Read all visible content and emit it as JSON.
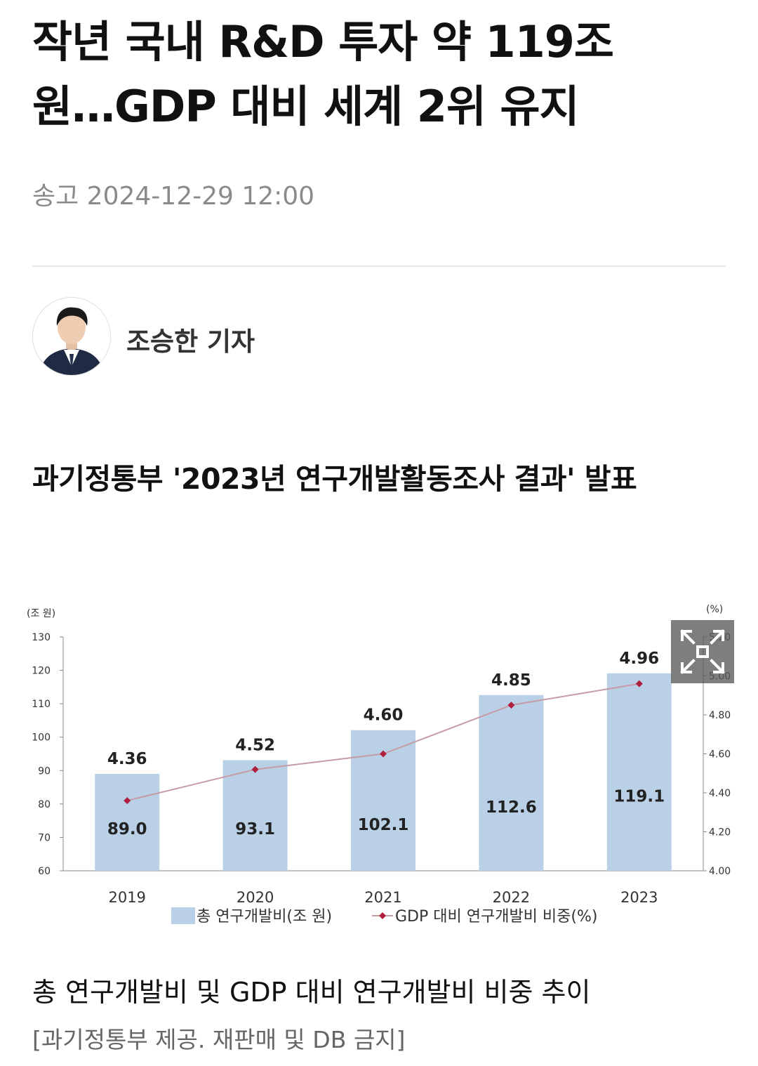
{
  "article": {
    "title_line1": "작년 국내 R&D 투자 약 119조",
    "title_line2": "원…GDP 대비 세계 2위 유지",
    "meta": "송고 2024-12-29 12:00",
    "author": "조승한 기자",
    "subhead": "과기정통부 '2023년 연구개발활동조사 결과' 발표",
    "caption": "총 연구개발비 및 GDP 대비 연구개발비 비중 추이",
    "credit": "[과기정통부 제공. 재판매 및 DB 금지]"
  },
  "icons": {
    "avatar": "reporter-portrait",
    "expand": "expand-icon"
  },
  "chart_data": {
    "type": "bar",
    "categories": [
      "2019",
      "2020",
      "2021",
      "2022",
      "2023"
    ],
    "series": [
      {
        "name": "총 연구개발비(조 원)",
        "type": "bar",
        "axis": "left",
        "values": [
          89.0,
          93.1,
          102.1,
          112.6,
          119.1
        ],
        "labels": [
          "89.0",
          "93.1",
          "102.1",
          "112.6",
          "119.1"
        ]
      },
      {
        "name": "GDP 대비 연구개발비 비중(%)",
        "type": "line",
        "axis": "right",
        "values": [
          4.36,
          4.52,
          4.6,
          4.85,
          4.96
        ],
        "labels": [
          "4.36",
          "4.52",
          "4.60",
          "4.85",
          "4.96"
        ]
      }
    ],
    "left_axis": {
      "unit": "(조 원)",
      "range": [
        60,
        130
      ],
      "ticks": [
        "60",
        "70",
        "80",
        "90",
        "100",
        "110",
        "120",
        "130"
      ]
    },
    "right_axis": {
      "unit": "(%)",
      "range": [
        4.0,
        5.2
      ],
      "ticks": [
        "4.00",
        "4.20",
        "4.40",
        "4.60",
        "4.80",
        "5.00",
        "5.20"
      ]
    },
    "legend_position": "bottom-center",
    "grid": false,
    "colors": {
      "bar": "#b9d0e6",
      "line": "#c79aa6",
      "marker": "#b0203e",
      "axis": "#8a8a8a"
    }
  }
}
